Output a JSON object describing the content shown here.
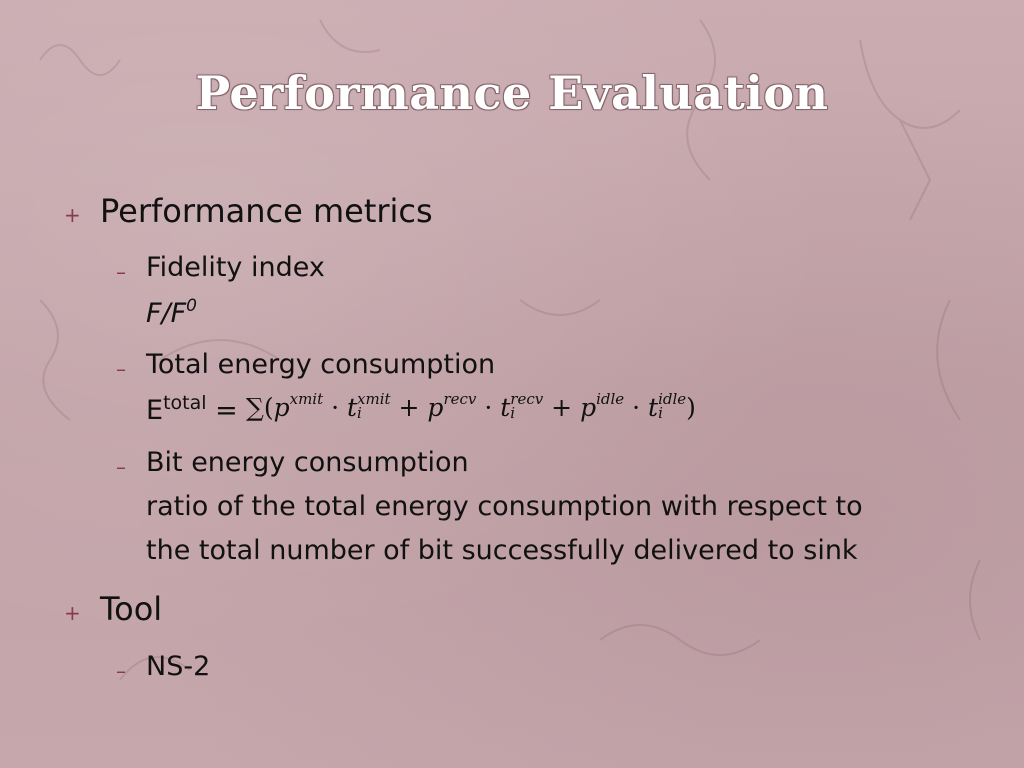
{
  "title": "Performance Evaluation",
  "sections": [
    {
      "bullet": "+",
      "heading": "Performance metrics",
      "items": [
        {
          "dash": "–",
          "label": "Fidelity index",
          "detail_main": "F/F",
          "detail_sup": "0"
        },
        {
          "dash": "–",
          "label": "Total energy consumption",
          "formula": {
            "lhs_main": "E",
            "lhs_sup": "total",
            "equals": "=",
            "sum": "∑(",
            "p": "p",
            "dot": "·",
            "t": "t",
            "plus": "+",
            "close": ")",
            "sub_i": "i",
            "xmit": "xmit",
            "recv": "recv",
            "idle": "idle"
          }
        },
        {
          "dash": "–",
          "label": "Bit energy consumption",
          "detail_line1": "ratio of the total energy consumption with respect to",
          "detail_line2": "the total number of bit successfully delivered to sink"
        }
      ]
    },
    {
      "bullet": "+",
      "heading": "Tool",
      "items": [
        {
          "dash": "–",
          "label": "NS-2"
        }
      ]
    }
  ]
}
